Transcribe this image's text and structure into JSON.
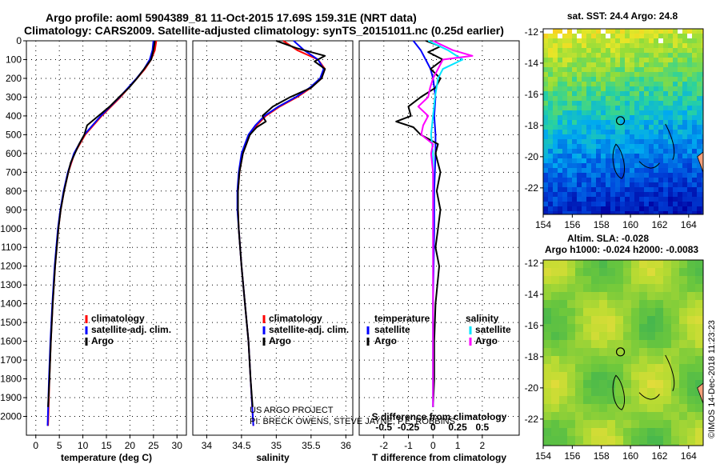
{
  "header": {
    "line1": "Argo profile: aoml 5904389_81 11-Oct-2015 17.69S 159.31E (NRT data)",
    "line2": "Climatology: CARS2009. Satellite-adjusted climatology: synTS_20151011.nc (0.25d earlier)"
  },
  "colors": {
    "climatology": "#ff0000",
    "satellite_adj": "#0000ff",
    "argo": "#000000",
    "satellite_salinity": "#00e5ff",
    "argo_salinity": "#ff00ff"
  },
  "credits": {
    "project": "US ARGO PROJECT",
    "pis": "PI: BRECK OWENS, STEVE JAYNE, P.E. ROBBINS",
    "stamp": "©IMOS 14-Dec-2018 11:23:23"
  },
  "chart_data": [
    {
      "type": "line",
      "id": "temperature",
      "xlabel": "temperature (deg C)",
      "ylabel": "",
      "xlim": [
        -2,
        32
      ],
      "ylim": [
        2100,
        0
      ],
      "xticks": [
        0,
        5,
        10,
        15,
        20,
        25,
        30
      ],
      "yticks": [
        0,
        100,
        200,
        300,
        400,
        500,
        600,
        700,
        800,
        900,
        1000,
        1100,
        1200,
        1300,
        1400,
        1500,
        1600,
        1700,
        1800,
        1900,
        2000
      ],
      "grid": true,
      "legend": {
        "position": "center-right",
        "entries": [
          {
            "label": "climatology",
            "color": "#ff0000"
          },
          {
            "label": "satellite-adj. clim.",
            "color": "#0000ff"
          },
          {
            "label": "Argo",
            "color": "#000000"
          }
        ]
      },
      "series": [
        {
          "name": "climatology",
          "color": "#ff0000",
          "depth": [
            0,
            50,
            100,
            150,
            200,
            300,
            400,
            500,
            600,
            700,
            800,
            900,
            1000,
            1200,
            1400,
            1600,
            1800,
            2050
          ],
          "values": [
            25.6,
            25.3,
            24.5,
            23.2,
            21.5,
            18.0,
            14.0,
            10.5,
            8.2,
            6.9,
            6.0,
            5.3,
            4.8,
            4.1,
            3.6,
            3.2,
            2.9,
            2.6
          ]
        },
        {
          "name": "satellite-adj. clim.",
          "color": "#0000ff",
          "depth": [
            0,
            50,
            100,
            150,
            200,
            300,
            400,
            500,
            600,
            700,
            800,
            900,
            1000,
            1200,
            1400,
            1600,
            1800,
            2050
          ],
          "values": [
            25.0,
            24.8,
            24.2,
            23.0,
            21.4,
            17.8,
            13.8,
            10.3,
            8.1,
            6.8,
            5.9,
            5.2,
            4.7,
            4.0,
            3.5,
            3.1,
            2.8,
            2.5
          ]
        },
        {
          "name": "Argo",
          "color": "#000000",
          "depth": [
            0,
            50,
            100,
            150,
            200,
            250,
            300,
            350,
            400,
            450,
            500,
            550,
            600,
            650,
            700,
            800,
            900,
            1000,
            1200,
            1400,
            1600,
            1800,
            1950
          ],
          "values": [
            25.3,
            25.0,
            24.5,
            23.0,
            21.5,
            19.8,
            17.7,
            15.7,
            13.3,
            10.9,
            10.3,
            9.2,
            8.3,
            7.4,
            6.9,
            6.0,
            5.3,
            4.8,
            4.1,
            3.6,
            3.2,
            2.9,
            2.6
          ]
        }
      ]
    },
    {
      "type": "line",
      "id": "salinity",
      "xlabel": "salinity",
      "ylabel": "",
      "xlim": [
        33.8,
        36.1
      ],
      "ylim": [
        2100,
        0
      ],
      "xticks": [
        34,
        34.5,
        35,
        35.5,
        36
      ],
      "grid": true,
      "legend": {
        "position": "center-right",
        "entries": [
          {
            "label": "climatology",
            "color": "#ff0000"
          },
          {
            "label": "satellite-adj. clim.",
            "color": "#0000ff"
          },
          {
            "label": "Argo",
            "color": "#000000"
          }
        ]
      },
      "series": [
        {
          "name": "climatology",
          "color": "#ff0000",
          "depth": [
            0,
            50,
            100,
            150,
            200,
            250,
            300,
            350,
            400,
            450,
            500,
            600,
            700,
            800,
            900,
            1000,
            1200,
            1400,
            1600,
            1800,
            2050
          ],
          "values": [
            35.1,
            35.3,
            35.6,
            35.7,
            35.65,
            35.5,
            35.3,
            35.05,
            34.85,
            34.72,
            34.62,
            34.52,
            34.47,
            34.45,
            34.45,
            34.46,
            34.5,
            34.55,
            34.6,
            34.63,
            34.67
          ]
        },
        {
          "name": "satellite-adj. clim.",
          "color": "#0000ff",
          "depth": [
            0,
            50,
            100,
            150,
            200,
            250,
            300,
            350,
            400,
            450,
            500,
            600,
            700,
            800,
            900,
            1000,
            1200,
            1400,
            1600,
            1800,
            2050
          ],
          "values": [
            35.25,
            35.4,
            35.6,
            35.68,
            35.63,
            35.48,
            35.28,
            35.03,
            34.83,
            34.7,
            34.6,
            34.5,
            34.46,
            34.44,
            34.44,
            34.46,
            34.5,
            34.55,
            34.6,
            34.63,
            34.67
          ]
        },
        {
          "name": "Argo",
          "color": "#000000",
          "depth": [
            0,
            40,
            80,
            110,
            150,
            200,
            250,
            300,
            350,
            400,
            430,
            460,
            500,
            600,
            700,
            800,
            900,
            1000,
            1200,
            1400,
            1600,
            1800,
            1950
          ],
          "values": [
            35.0,
            35.3,
            35.7,
            35.55,
            35.7,
            35.65,
            35.5,
            35.2,
            34.95,
            34.8,
            34.85,
            34.72,
            34.62,
            34.52,
            34.47,
            34.45,
            34.45,
            34.46,
            34.5,
            34.55,
            34.6,
            34.63,
            34.66
          ]
        }
      ]
    },
    {
      "type": "line",
      "id": "differences",
      "xlabel": "T difference from climatology",
      "xlabel_top": "S difference from climatology",
      "xlim": [
        -3,
        3.5
      ],
      "ylim": [
        2100,
        0
      ],
      "xticks": [
        -2,
        -1,
        0,
        1,
        2
      ],
      "xticks_top": [
        -0.5,
        -0.25,
        0,
        0.25,
        0.5
      ],
      "xticks_top_labels": [
        "-0.5",
        "-0.25",
        "0",
        "0.25",
        "0.5"
      ],
      "grid": true,
      "legend": {
        "position": "lower-center",
        "temperature_title": "temperature",
        "salinity_title": "salinity",
        "temperature_entries": [
          {
            "label": "satellite",
            "color": "#0000ff"
          },
          {
            "label": "Argo",
            "color": "#000000"
          }
        ],
        "salinity_entries": [
          {
            "label": "satellite",
            "color": "#00e5ff"
          },
          {
            "label": "Argo",
            "color": "#ff00ff"
          }
        ]
      },
      "series": [
        {
          "name": "T satellite",
          "color": "#0000ff",
          "depth": [
            0,
            50,
            100,
            150,
            200,
            300,
            400,
            500,
            600,
            800,
            1000,
            1400,
            1800,
            1950
          ],
          "values": [
            -0.8,
            -0.5,
            -0.3,
            -0.1,
            0.0,
            0.1,
            0.05,
            0.1,
            0.1,
            0.05,
            0.05,
            0.0,
            0.0,
            0.0
          ]
        },
        {
          "name": "T Argo",
          "color": "#000000",
          "depth": [
            0,
            30,
            60,
            100,
            150,
            200,
            250,
            300,
            350,
            400,
            430,
            460,
            500,
            550,
            600,
            700,
            800,
            900,
            1000,
            1100,
            1200,
            1400,
            1600,
            1800,
            1950
          ],
          "values": [
            -0.3,
            0.3,
            -0.2,
            0.4,
            -0.1,
            0.3,
            0.1,
            -0.5,
            -1.0,
            -0.9,
            -1.5,
            -0.8,
            -0.5,
            0.2,
            0.1,
            0.3,
            0.15,
            0.3,
            0.2,
            0.1,
            0.25,
            0.1,
            0.05,
            0.05,
            0.0
          ]
        },
        {
          "name": "S satellite",
          "color": "#00e5ff",
          "depth": [
            0,
            50,
            100,
            150,
            200,
            300,
            400,
            500,
            600,
            800,
            1000,
            1400,
            1800,
            1950
          ],
          "values": [
            -0.05,
            0.15,
            0.3,
            0.1,
            0.05,
            0.02,
            0.0,
            -0.02,
            0.0,
            0.0,
            0.0,
            0.0,
            0.0,
            0.0
          ]
        },
        {
          "name": "S Argo",
          "color": "#ff00ff",
          "depth": [
            0,
            50,
            80,
            100,
            150,
            200,
            250,
            300,
            350,
            400,
            450,
            500,
            550,
            600,
            700,
            800,
            1000,
            1400,
            1800,
            1950
          ],
          "values": [
            0.0,
            0.2,
            0.4,
            0.1,
            0.05,
            0.0,
            -0.03,
            -0.05,
            -0.15,
            -0.05,
            -0.1,
            -0.12,
            0.0,
            -0.02,
            0.0,
            0.0,
            0.0,
            0.0,
            0.0,
            0.0
          ]
        }
      ]
    },
    {
      "type": "heatmap",
      "id": "sst_map",
      "title": "sat. SST: 24.4  Argo: 24.8",
      "xlim": [
        154,
        165
      ],
      "ylim": [
        -23.7,
        -11.8
      ],
      "xticks": [
        154,
        156,
        158,
        160,
        162,
        164
      ],
      "yticks": [
        -12,
        -14,
        -16,
        -18,
        -20,
        -22
      ],
      "float_position": {
        "lon": 159.31,
        "lat": -17.69
      }
    },
    {
      "type": "heatmap",
      "id": "sla_map",
      "title": "Altim. SLA: -0.028",
      "subtitle": "Argo h1000: -0.024  h2000: -0.0083",
      "xlim": [
        154,
        165
      ],
      "ylim": [
        -23.7,
        -11.8
      ],
      "xticks": [
        154,
        156,
        158,
        160,
        162,
        164
      ],
      "yticks": [
        -12,
        -14,
        -16,
        -18,
        -20,
        -22
      ],
      "float_position": {
        "lon": 159.31,
        "lat": -17.69
      }
    }
  ]
}
